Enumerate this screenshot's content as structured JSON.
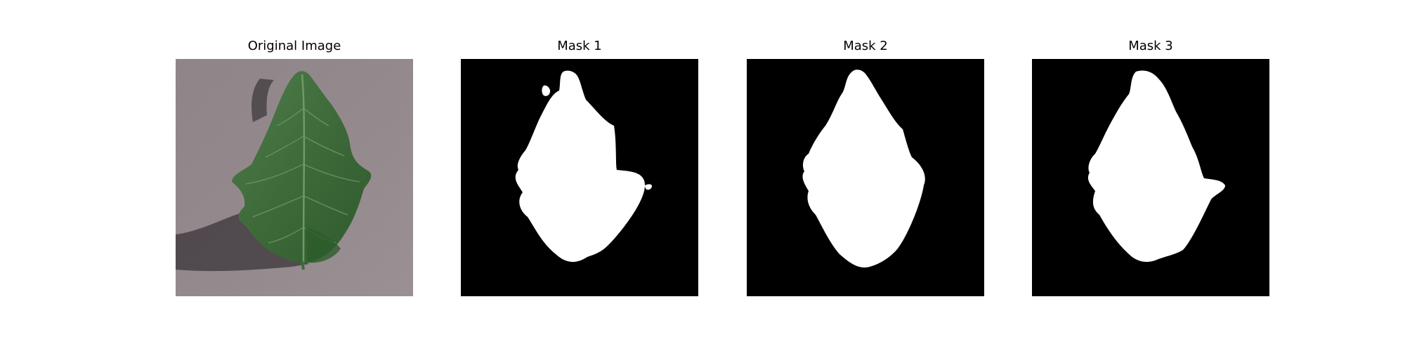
{
  "panels": [
    {
      "title": "Original Image"
    },
    {
      "title": "Mask 1"
    },
    {
      "title": "Mask 2"
    },
    {
      "title": "Mask 3"
    }
  ],
  "colors": {
    "background": "#ffffff",
    "mask_background": "#000000",
    "mask_foreground": "#ffffff",
    "surface": "#8f8488",
    "leaf": "#3f6b3c"
  }
}
